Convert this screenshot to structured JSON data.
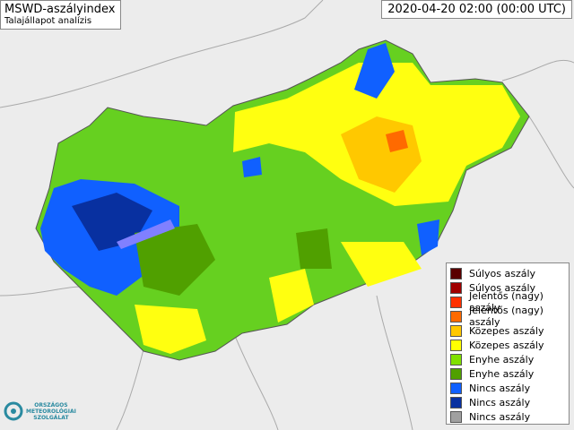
{
  "header": {
    "title": "MSWD-aszályindex",
    "subtitle": "Talajállapot analízis",
    "timestamp": "2020-04-20 02:00 (00:00 UTC)"
  },
  "legend": {
    "items": [
      {
        "label": "Súlyos aszály",
        "color": "#5a0000"
      },
      {
        "label": "Súlyos aszály",
        "color": "#a00000"
      },
      {
        "label": "Jelentős (nagy) aszály",
        "color": "#ff3000"
      },
      {
        "label": "Jelentős (nagy) aszály",
        "color": "#ff6a00"
      },
      {
        "label": "Közepes aszály",
        "color": "#ffc800"
      },
      {
        "label": "Közepes aszály",
        "color": "#ffff00"
      },
      {
        "label": "Enyhe aszály",
        "color": "#80e000"
      },
      {
        "label": "Enyhe aszály",
        "color": "#50a000"
      },
      {
        "label": "Nincs aszály",
        "color": "#1060ff"
      },
      {
        "label": "Nincs aszály",
        "color": "#0830a0"
      },
      {
        "label": "Nincs aszály",
        "color": "#a0a0a0"
      }
    ]
  },
  "logo": {
    "lines": [
      "ORSZÁGOS",
      "METEOROLÓGIAI",
      "SZOLGÁLAT"
    ]
  }
}
